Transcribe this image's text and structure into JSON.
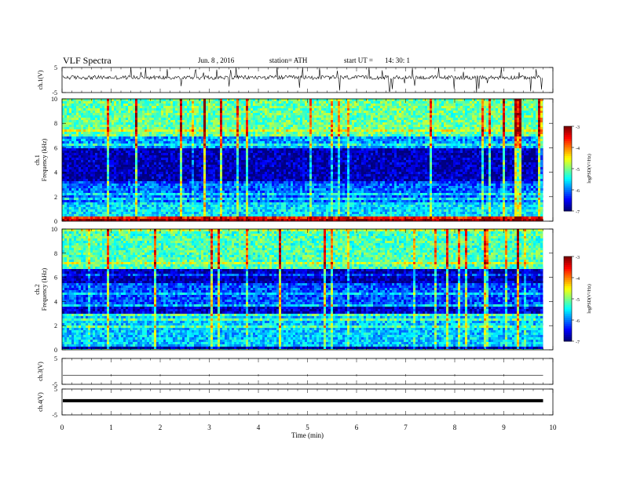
{
  "header": {
    "title": "VLF  Spectra",
    "date": "Jun. 8  , 2016",
    "station": "station= ATH",
    "start_label": "start  UT  =",
    "start_time": "14: 30: 1"
  },
  "chart_data": [
    {
      "type": "line",
      "panel": "ch1-waveform",
      "ylabel": "ch.1(V)",
      "ylim": [
        -5,
        5
      ],
      "yticks": [
        "5",
        "-5"
      ],
      "series": [
        {
          "values": "noisy signal oscillating around ~+1 V with frequent sharp spikes"
        }
      ]
    },
    {
      "type": "heatmap",
      "panel": "ch1-spectrogram",
      "ylabel_top": "ch.1",
      "ylabel": "Frequency  (kHz)",
      "ylim": [
        0,
        10
      ],
      "yticks": [
        "0",
        "2",
        "4",
        "6",
        "8",
        "10"
      ],
      "bands": [
        {
          "from": 0,
          "to": 0.3,
          "level": -3.6
        },
        {
          "from": 0.3,
          "to": 1.5,
          "level": -5.6
        },
        {
          "from": 1.5,
          "to": 3.0,
          "level": -6.1
        },
        {
          "from": 3.0,
          "to": 6.0,
          "level": -6.8
        },
        {
          "from": 6.0,
          "to": 7.0,
          "level": -5.9
        },
        {
          "from": 7.0,
          "to": 10,
          "level": -5.1
        }
      ],
      "colorbar": {
        "label": "logPSD(V²/Hz)",
        "ticks": [
          "-3",
          "-4",
          "-5",
          "-6",
          "-7"
        ],
        "range": [
          -7,
          -3
        ]
      }
    },
    {
      "type": "heatmap",
      "panel": "ch2-spectrogram",
      "ylabel_top": "ch.2",
      "ylabel": "Frequency  (kHz)",
      "ylim": [
        0,
        10
      ],
      "yticks": [
        "0",
        "2",
        "4",
        "6",
        "8",
        "10"
      ],
      "bands": [
        {
          "from": 0,
          "to": 0.3,
          "level": -6.9
        },
        {
          "from": 0.3,
          "to": 3.0,
          "level": -5.7
        },
        {
          "from": 3.0,
          "to": 3.6,
          "level": -6.7
        },
        {
          "from": 3.6,
          "to": 5.6,
          "level": -6.2
        },
        {
          "from": 5.6,
          "to": 6.6,
          "level": -6.8
        },
        {
          "from": 6.6,
          "to": 10,
          "level": -5.2
        }
      ],
      "colorbar": {
        "label": "logPSD(V²/Hz)",
        "ticks": [
          "-3",
          "-4",
          "-5",
          "-6",
          "-7"
        ],
        "range": [
          -7,
          -3
        ]
      }
    },
    {
      "type": "line",
      "panel": "ch3-waveform",
      "ylabel": "ch.3(V)",
      "ylim": [
        -5,
        5
      ],
      "yticks": [
        "5",
        "-5"
      ],
      "series": [
        {
          "values": "flat trace near -1.5 V"
        }
      ]
    },
    {
      "type": "line",
      "panel": "ch4-waveform",
      "ylabel": "ch.4(V)",
      "ylim": [
        -5,
        5
      ],
      "yticks": [
        "5",
        "-5"
      ],
      "series": [
        {
          "values": "thick flat trace near +0.5 V"
        }
      ]
    }
  ],
  "x_axis": {
    "label": "Time  (min)",
    "xlim": [
      0,
      10
    ],
    "ticks": [
      "0",
      "1",
      "2",
      "3",
      "4",
      "5",
      "6",
      "7",
      "8",
      "9",
      "10"
    ],
    "data_end": 9.8
  }
}
